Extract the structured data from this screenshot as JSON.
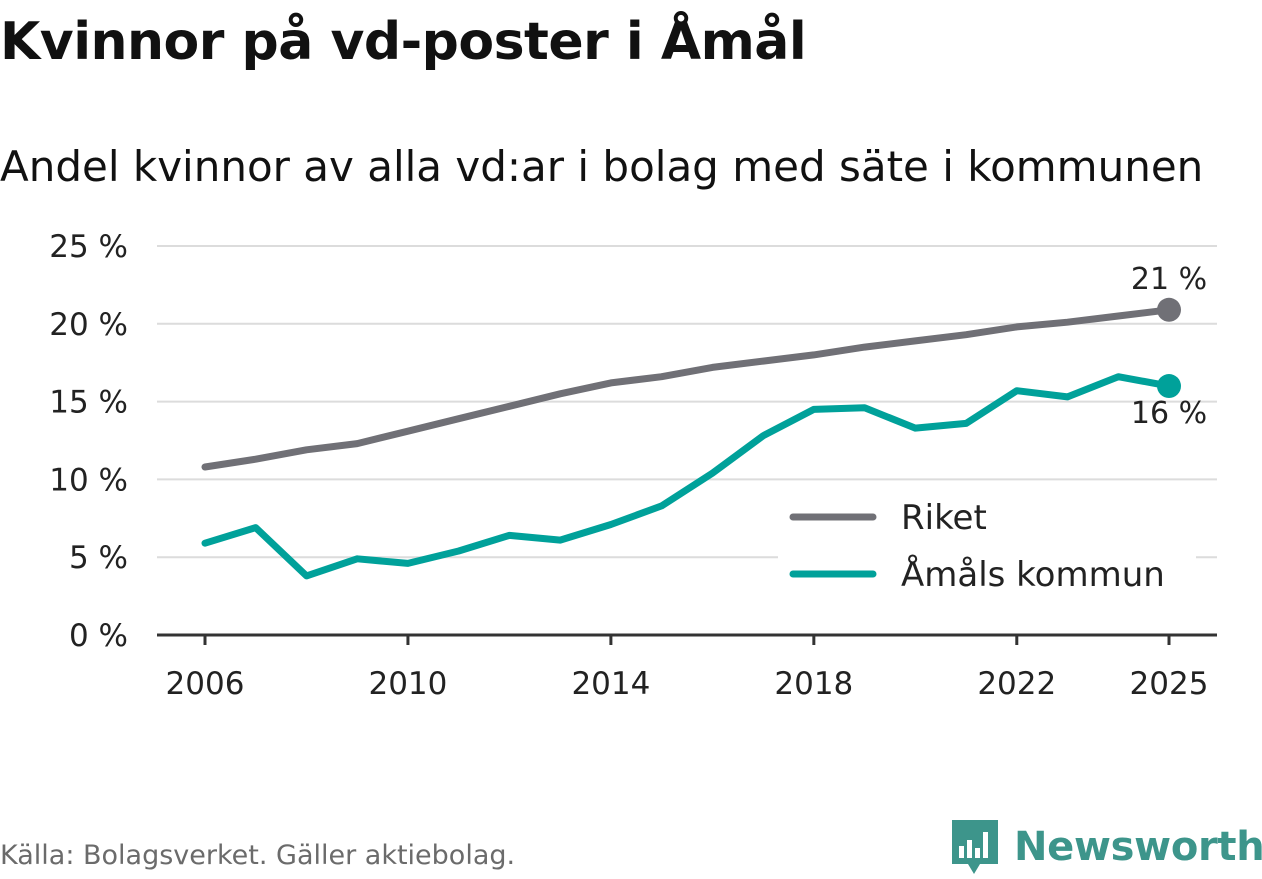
{
  "title": "Kvinnor på vd-poster i Åmål",
  "subtitle": "Andel kvinnor av alla vd:ar i bolag med säte i kommunen",
  "source": "Källa: Bolagsverket. Gäller aktiebolag.",
  "brand": "Newsworthy",
  "colors": {
    "riket": "#707076",
    "amal": "#00a19a",
    "grid": "#dcdcdc",
    "axis": "#333333",
    "brand": "#3d958b"
  },
  "chart_data": {
    "type": "line",
    "title": "Andel kvinnor av alla vd:ar i bolag med säte i kommunen",
    "xlabel": "",
    "ylabel": "",
    "ylim": [
      0,
      25
    ],
    "xlim": [
      2006,
      2025
    ],
    "y_ticks": [
      0,
      5,
      10,
      15,
      20,
      25
    ],
    "y_tick_labels": [
      "0 %",
      "5 %",
      "10 %",
      "15 %",
      "20 %",
      "25 %"
    ],
    "x_ticks": [
      2006,
      2010,
      2014,
      2018,
      2022,
      2025
    ],
    "x_tick_labels": [
      "2006",
      "2010",
      "2014",
      "2018",
      "2022",
      "2025"
    ],
    "x": [
      2006,
      2007,
      2008,
      2009,
      2010,
      2011,
      2012,
      2013,
      2014,
      2015,
      2016,
      2017,
      2018,
      2019,
      2020,
      2021,
      2022,
      2023,
      2024,
      2025
    ],
    "series": [
      {
        "name": "Riket",
        "color": "#707076",
        "values": [
          10.8,
          11.3,
          11.9,
          12.3,
          13.1,
          13.9,
          14.7,
          15.5,
          16.2,
          16.6,
          17.2,
          17.6,
          18.0,
          18.5,
          18.9,
          19.3,
          19.8,
          20.1,
          20.5,
          20.9
        ],
        "end_label": "21 %"
      },
      {
        "name": "Åmåls kommun",
        "color": "#00a19a",
        "values": [
          5.9,
          6.9,
          3.8,
          4.9,
          4.6,
          5.4,
          6.4,
          6.1,
          7.1,
          8.3,
          10.4,
          12.8,
          14.5,
          14.6,
          13.3,
          13.6,
          15.7,
          15.3,
          16.6,
          16.0
        ],
        "end_label": "16 %"
      }
    ],
    "legend": [
      "Riket",
      "Åmåls kommun"
    ],
    "legend_position": "bottom-right",
    "grid": true
  }
}
